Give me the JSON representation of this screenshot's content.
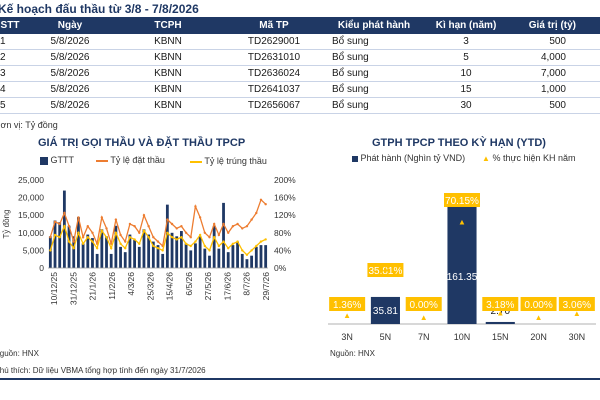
{
  "plan": {
    "title": "Kế hoạch đấu thầu từ 3/8 - 7/8/2026",
    "headers": [
      "STT",
      "Ngày",
      "TCPH",
      "Mã TP",
      "Kiểu phát hành",
      "Kì hạn (năm)",
      "Giá trị (tỷ)"
    ],
    "rows": [
      [
        "1",
        "5/8/2026",
        "KBNN",
        "TD2629001",
        "Bổ sung",
        "3",
        "500"
      ],
      [
        "2",
        "5/8/2026",
        "KBNN",
        "TD2631010",
        "Bổ sung",
        "5",
        "4,000"
      ],
      [
        "3",
        "5/8/2026",
        "KBNN",
        "TD2636024",
        "Bổ sung",
        "10",
        "7,000"
      ],
      [
        "4",
        "5/8/2026",
        "KBNN",
        "TD2641037",
        "Bổ sung",
        "15",
        "1,000"
      ],
      [
        "5",
        "5/8/2026",
        "KBNN",
        "TD2656067",
        "Bổ sung",
        "30",
        "500"
      ]
    ],
    "unit": "Đơn vị: Tỷ đồng"
  },
  "left_chart": {
    "title": "GIÁ TRỊ GỌI THẦU VÀ ĐẶT THẦU TPCP",
    "legend_bar": "GTTT",
    "legend_line1": "Tỷ lệ đặt thầu",
    "legend_line2": "Tỷ lệ trúng thầu",
    "ylabel": "Tỷ đồng",
    "yticks_left": [
      "25,000",
      "20,000",
      "15,000",
      "10,000",
      "5,000",
      "0"
    ],
    "yticks_right": [
      "200%",
      "160%",
      "120%",
      "80%",
      "40%",
      "0%"
    ],
    "xticks": [
      "10/12/25",
      "31/12/25",
      "21/1/26",
      "11/2/26",
      "4/3/26",
      "25/3/26",
      "15/4/26",
      "6/5/26",
      "27/5/26",
      "17/6/26",
      "8/7/26",
      "29/7/26"
    ],
    "source": "Nguồn: HNX",
    "colors": {
      "bar": "#1f3864",
      "line1": "#ed7d31",
      "line2": "#ffc000"
    }
  },
  "right_chart": {
    "title": "GTPH TPCP THEO KỲ HẠN (YTD)",
    "legend_bar": "Phát hành (Nghìn tỷ VND)",
    "legend_marker": "% thực hiện KH năm",
    "source": "Nguồn: HNX",
    "colors": {
      "bar": "#1f3864",
      "label": "#ffc000"
    }
  },
  "note": "Chú thích: Dữ liệu VBMA tổng hợp tính đến ngày 31/7/2026",
  "chart_data": [
    {
      "type": "bar",
      "title": "GIÁ TRỊ GỌI THẦU VÀ ĐẶT THẦU TPCP",
      "ylabel": "Tỷ đồng",
      "ylim": [
        0,
        25000
      ],
      "y2lim": [
        0,
        200
      ],
      "xtick_labels": [
        "10/12/25",
        "31/12/25",
        "21/1/26",
        "11/2/26",
        "4/3/26",
        "25/3/26",
        "15/4/26",
        "6/5/26",
        "27/5/26",
        "17/6/26",
        "8/7/26",
        "29/7/26"
      ],
      "series": [
        {
          "name": "GTTT",
          "type": "bar",
          "values": [
            9000,
            13500,
            13000,
            22000,
            12000,
            9000,
            14500,
            7000,
            9500,
            8500,
            4000,
            11000,
            9000,
            4000,
            12000,
            6000,
            4500,
            9500,
            8000,
            6000,
            11000,
            9500,
            7500,
            6500,
            4000,
            18000,
            10000,
            9000,
            10500,
            7000,
            5000,
            7000,
            9000,
            5500,
            3500,
            12000,
            5500,
            18500,
            4500,
            6500,
            7500,
            4000,
            2500,
            3500,
            6000,
            6500,
            6500
          ]
        },
        {
          "name": "Tỷ lệ đặt thầu",
          "type": "line",
          "values": [
            70,
            105,
            100,
            125,
            95,
            60,
            115,
            70,
            95,
            80,
            55,
            115,
            90,
            55,
            110,
            75,
            60,
            100,
            95,
            80,
            120,
            95,
            70,
            60,
            50,
            110,
            100,
            90,
            95,
            80,
            70,
            140,
            115,
            80,
            70,
            100,
            75,
            100,
            80,
            95,
            100,
            90,
            95,
            110,
            125,
            155,
            145
          ]
        },
        {
          "name": "Tỷ lệ trúng thầu",
          "type": "line",
          "values": [
            40,
            75,
            70,
            95,
            60,
            45,
            80,
            55,
            70,
            60,
            45,
            85,
            70,
            45,
            80,
            55,
            45,
            70,
            65,
            55,
            85,
            70,
            50,
            45,
            40,
            80,
            70,
            65,
            70,
            55,
            50,
            60,
            75,
            50,
            40,
            70,
            50,
            60,
            45,
            55,
            60,
            40,
            30,
            40,
            50,
            60,
            65
          ]
        }
      ]
    },
    {
      "type": "bar",
      "title": "GTPH TPCP THEO KỲ HẠN (YTD)",
      "categories": [
        "3N",
        "5N",
        "7N",
        "10N",
        "15N",
        "20N",
        "30N"
      ],
      "series": [
        {
          "name": "Phát hành (Nghìn tỷ VND)",
          "values": [
            0,
            35.81,
            0,
            161.35,
            2.7,
            0,
            0
          ],
          "labels": [
            "",
            "35.81",
            "",
            "161.35",
            "2.70",
            "",
            ""
          ]
        },
        {
          "name": "% thực hiện KH năm",
          "values": [
            1.36,
            35.81,
            0.0,
            70.15,
            3.18,
            0.0,
            3.06
          ],
          "labels": [
            "1.36%",
            "35.81%",
            "0.00%",
            "70.15%",
            "3.18%",
            "0.00%",
            "3.06%"
          ]
        }
      ]
    }
  ]
}
